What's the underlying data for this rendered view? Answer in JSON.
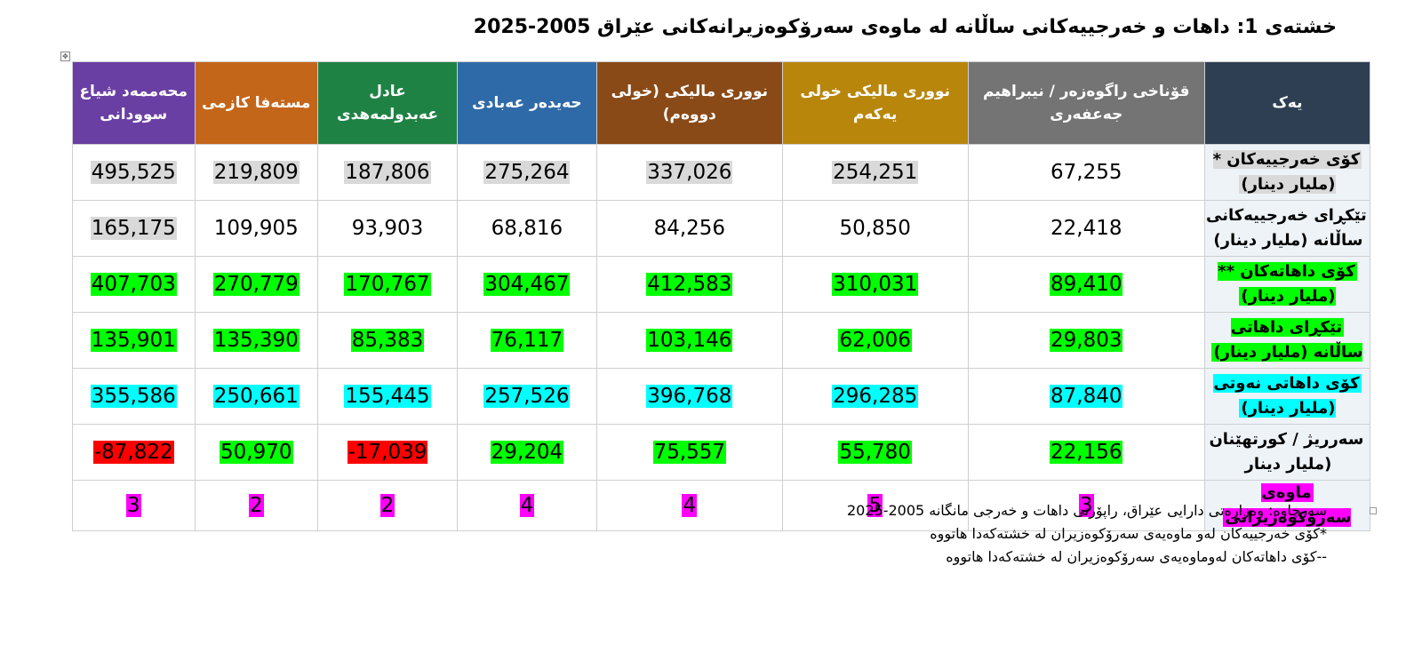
{
  "title": "خشتەی 1: داهات و خەرجییەکانی ساڵانە لە ماوەی سەرۆکوەزیرانەکانی عێراق 2005-2025",
  "headers": {
    "corner": "یەک",
    "periods": [
      "قۆناخی راگوەزەر / نیبراهیم جەعفەری",
      "نووری مالیکی خولی یەکەم",
      "نووری مالیکی (خولی دووەم)",
      "حەیدەر عەبادی",
      "عادل عەبدولمەهدی",
      "مستەفا کازمی",
      "محەممەد شیاع سوودانی"
    ]
  },
  "rows": [
    {
      "label": "کۆی خەرجییەکان *(ملیار دینار)",
      "values": [
        "67,255",
        "254,251",
        "337,026",
        "275,264",
        "187,806",
        "219,809",
        "495,525"
      ]
    },
    {
      "label": "تێکڕای خەرجییەکانی ساڵانە (ملیار دینار)",
      "values": [
        "22,418",
        "50,850",
        "84,256",
        "68,816",
        "93,903",
        "109,905",
        "165,175"
      ]
    },
    {
      "label": "کۆی داهاتەکان **(ملیار دینار)",
      "values": [
        "89,410",
        "310,031",
        "412,583",
        "304,467",
        "170,767",
        "270,779",
        "407,703"
      ]
    },
    {
      "label": "تێکڕای داهاتی ساڵانە (ملیار دینار)",
      "values": [
        "29,803",
        "62,006",
        "103,146",
        "76,117",
        "85,383",
        "135,390",
        "135,901"
      ]
    },
    {
      "label": "کۆی داهاتی نەوتی (ملیار دینار)",
      "values": [
        "87,840",
        "296,285",
        "396,768",
        "257,526",
        "155,445",
        "250,661",
        "355,586"
      ]
    },
    {
      "label": "سەرریژ / کورتهێنان (ملیار دینار",
      "values": [
        "22,156",
        "55,780",
        "75,557",
        "29,204",
        "-17,039",
        "50,970",
        "-87,822"
      ]
    },
    {
      "label": "ماوەی سەرۆکوەزیرانی",
      "values": [
        "3",
        "5",
        "4",
        "4",
        "2",
        "2",
        "3"
      ]
    }
  ],
  "notes": [
    "سەرچاوە: وەزارەتی دارایی عێراق، راپۆرتی داهات و خەرجی مانگانە 2005-2025",
    "*کۆی خەرجییەکان لەو ماوەیەی سەرۆکوەزیران لە خشتەکەدا هاتووە",
    "--کۆی داهاتەکان لەوماوەیەی سەرۆکوەزیران لە خشتەکەدا هاتووە"
  ],
  "colors": {
    "header_corner": "#2e3f53",
    "header_periods": [
      "#747474",
      "#b8860b",
      "#8a4a17",
      "#2e6aa8",
      "#1f8245",
      "#c4661a",
      "#6a3fa3"
    ],
    "highlight_expenditure": "#d9d9d9",
    "highlight_revenue": "#00ff00",
    "highlight_oil": "#00ffff",
    "highlight_deficit": "#ff0000",
    "highlight_term": "#ff00ff"
  }
}
